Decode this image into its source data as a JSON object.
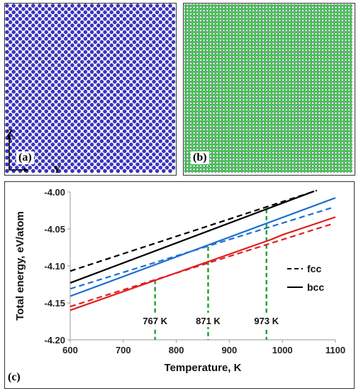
{
  "panel_a": {
    "label": "(a)",
    "axis_z": "Z",
    "axis_y": "Y",
    "atom_color": "#3b33c8"
  },
  "panel_b": {
    "label": "(b)",
    "atom_color": "#3fd43f"
  },
  "panel_c": {
    "label": "(c)"
  },
  "chart_data": {
    "type": "line",
    "title": "",
    "xlabel": "Temperature, K",
    "ylabel": "Total energy, eV/atom",
    "xlim": [
      600,
      1100
    ],
    "ylim": [
      -4.2,
      -4.0
    ],
    "xticks": [
      "600",
      "700",
      "800",
      "900",
      "1000",
      "1100"
    ],
    "yticks": [
      "-4.00",
      "-4.05",
      "-4.10",
      "-4.15",
      "-4.20"
    ],
    "grid": false,
    "legend": {
      "position": "right",
      "entries": [
        {
          "label": "fcc",
          "style": "dashed"
        },
        {
          "label": "bcc",
          "style": "solid"
        }
      ]
    },
    "series": [
      {
        "color": "#000000",
        "style": "dashed",
        "x": [
          600,
          1065
        ],
        "y": [
          -4.107,
          -3.998
        ]
      },
      {
        "color": "#000000",
        "style": "solid",
        "x": [
          600,
          1060
        ],
        "y": [
          -4.123,
          -3.999
        ]
      },
      {
        "color": "#1f6fd0",
        "style": "dashed",
        "x": [
          600,
          1095
        ],
        "y": [
          -4.131,
          -4.021
        ]
      },
      {
        "color": "#1f6fd0",
        "style": "solid",
        "x": [
          600,
          1100
        ],
        "y": [
          -4.141,
          -4.008
        ]
      },
      {
        "color": "#e02020",
        "style": "dashed",
        "x": [
          600,
          1095
        ],
        "y": [
          -4.155,
          -4.043
        ]
      },
      {
        "color": "#e02020",
        "style": "solid",
        "x": [
          600,
          980,
          1000,
          1100
        ],
        "y": [
          -4.16,
          -4.064,
          -4.058,
          -4.034
        ]
      }
    ],
    "markers": [
      {
        "x": 760,
        "y": -4.119,
        "label": "767 K"
      },
      {
        "x": 860,
        "y": -4.074,
        "label": "871 K"
      },
      {
        "x": 970,
        "y": -4.023,
        "label": "973 K"
      }
    ]
  }
}
